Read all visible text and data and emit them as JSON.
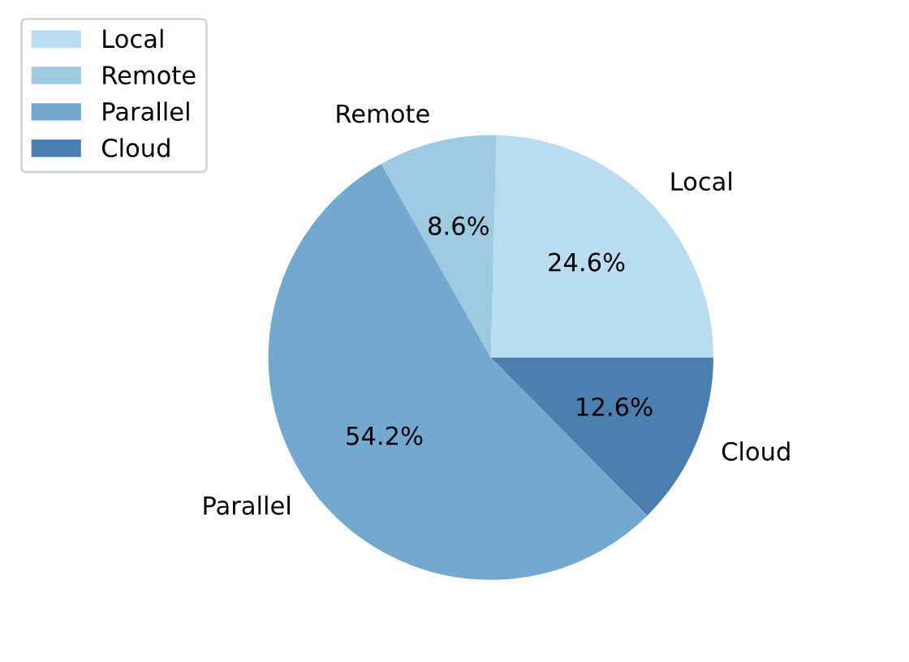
{
  "chart_data": {
    "type": "pie",
    "categories": [
      "Local",
      "Remote",
      "Parallel",
      "Cloud"
    ],
    "values": [
      24.6,
      8.6,
      54.2,
      12.6
    ],
    "value_labels": [
      "24.6%",
      "8.6%",
      "54.2%",
      "12.6%"
    ],
    "colors": [
      "#b9dcf0",
      "#9ecae1",
      "#74a9cf",
      "#4a7fb0"
    ],
    "legend": "top left"
  }
}
